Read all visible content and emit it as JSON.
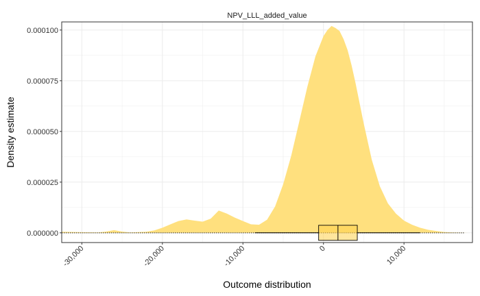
{
  "chart_data": {
    "type": "area",
    "title": "",
    "facet_label": "NPV_LLL_added_value",
    "xlabel": "Outcome distribution",
    "ylabel": "Density estimate",
    "xlim": [
      -32500,
      18500
    ],
    "ylim": [
      -4.8e-06,
      0.000104
    ],
    "x_ticks": [
      -30000,
      -20000,
      -10000,
      0,
      10000
    ],
    "x_tick_labels": [
      "-30,000",
      "-20,000",
      "-10,000",
      "0",
      "10,000"
    ],
    "y_ticks": [
      0,
      2.5e-05,
      5e-05,
      7.5e-05,
      0.0001
    ],
    "y_tick_labels": [
      "0.000000",
      "0.000025",
      "0.000050",
      "0.000075",
      "0.000100"
    ],
    "grid": true,
    "legend": "none",
    "fill_color": "#FFE07E",
    "series": [
      {
        "x": [
          -32500,
          -30000,
          -28000,
          -27000,
          -26000,
          -25000,
          -24000,
          -22000,
          -21000,
          -20000,
          -19000,
          -18000,
          -17000,
          -16000,
          -15000,
          -14000,
          -13000,
          -12000,
          -11000,
          -10000,
          -9000,
          -8000,
          -7000,
          -6000,
          -5000,
          -4000,
          -3000,
          -2000,
          -1000,
          0,
          500,
          1000,
          1500,
          2000,
          2500,
          3000,
          3500,
          4000,
          5000,
          6000,
          7000,
          8000,
          9000,
          10000,
          11000,
          12000,
          13000,
          14000,
          15000,
          16000,
          17000,
          18000
        ],
        "values": [
          5e-07,
          3e-07,
          2e-07,
          6e-07,
          1.3e-06,
          6e-07,
          2e-07,
          5e-07,
          1.2e-06,
          2.5e-06,
          4.2e-06,
          5.8e-06,
          6.6e-06,
          6e-06,
          5.5e-06,
          7e-06,
          1.1e-05,
          9.5e-06,
          7.5e-06,
          5.8e-06,
          4.2e-06,
          4e-06,
          6.5e-06,
          1.3e-05,
          2.4e-05,
          3.8e-05,
          5.5e-05,
          7.2e-05,
          8.7e-05,
          9.7e-05,
          0.0001,
          0.000102,
          0.000101,
          9.95e-05,
          9.55e-05,
          9e-05,
          8.25e-05,
          7.35e-05,
          5.4e-05,
          3.6e-05,
          2.3e-05,
          1.45e-05,
          9.5e-06,
          6e-06,
          4e-06,
          2.5e-06,
          1.5e-06,
          9e-07,
          4e-07,
          2e-07,
          1e-07,
          0
        ]
      }
    ],
    "boxplot": {
      "whisker_low": -8500,
      "q1": -600,
      "median": 1800,
      "q3": 4200,
      "whisker_high": 12000,
      "outlier_range": [
        -32500,
        17500
      ]
    }
  }
}
